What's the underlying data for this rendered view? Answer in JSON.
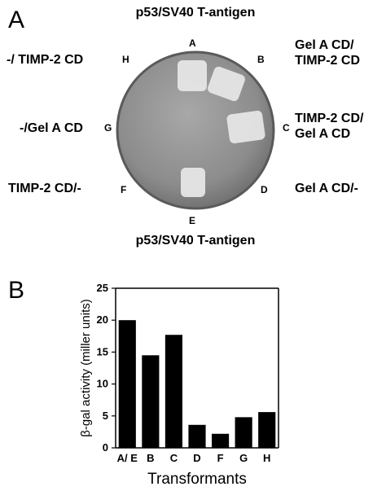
{
  "panel_a": {
    "letter": "A",
    "top_label": "p53/SV40 T-antigen",
    "bottom_label": "p53/SV40 T-antigen",
    "sectors": {
      "A": "A",
      "B": "B",
      "C": "C",
      "D": "D",
      "E": "E",
      "F": "F",
      "G": "G",
      "H": "H"
    },
    "labels": {
      "b_line1": "Gel A CD/",
      "b_line2": "TIMP-2 CD",
      "c_line1": "TIMP-2 CD/",
      "c_line2": "Gel A CD",
      "d": "Gel A CD/-",
      "f": "TIMP-2 CD/-",
      "g": "-/Gel A CD",
      "h": "-/ TIMP-2 CD"
    }
  },
  "panel_b": {
    "letter": "B"
  },
  "chart_data": {
    "type": "bar",
    "categories": [
      "A/ E",
      "B",
      "C",
      "D",
      "F",
      "G",
      "H"
    ],
    "values": [
      20,
      14.5,
      17.7,
      3.6,
      2.2,
      4.8,
      5.6
    ],
    "xlabel": "Transformants",
    "ylabel": "β-gal activity (miller units)",
    "ylim": [
      0,
      25
    ],
    "yticks": [
      "0",
      "5",
      "10",
      "15",
      "20",
      "25"
    ],
    "grid": false,
    "bar_color": "#000000"
  }
}
